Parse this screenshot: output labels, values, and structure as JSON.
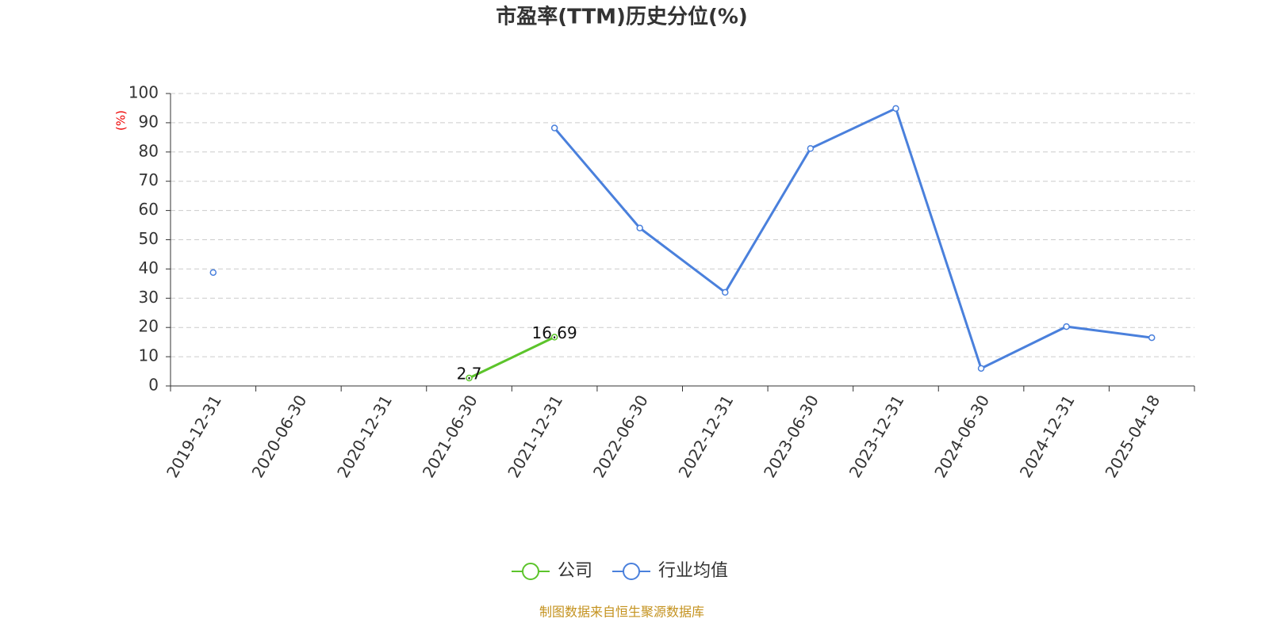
{
  "chart_data": {
    "type": "line",
    "title": "市盈率(TTM)历史分位(%)",
    "y_label": "(%)",
    "categories": [
      "2019-12-31",
      "2020-06-30",
      "2020-12-31",
      "2021-06-30",
      "2021-12-31",
      "2022-06-30",
      "2022-12-31",
      "2023-06-30",
      "2023-12-31",
      "2024-06-30",
      "2024-12-31",
      "2025-04-18"
    ],
    "series": [
      {
        "name": "公司",
        "color": "#5cc42b",
        "values": [
          null,
          null,
          null,
          2.7,
          16.69,
          null,
          null,
          null,
          null,
          null,
          null,
          null
        ],
        "show_labels": true
      },
      {
        "name": "行业均值",
        "color": "#4a80dc",
        "values": [
          38.8,
          null,
          null,
          null,
          88.2,
          54.0,
          32.0,
          81.2,
          94.9,
          6.0,
          20.3,
          16.5
        ],
        "show_labels": false
      }
    ],
    "ylim": [
      0,
      100
    ],
    "yticks": [
      0,
      10,
      20,
      30,
      40,
      50,
      60,
      70,
      80,
      90,
      100
    ],
    "grid": true,
    "legend": "bottom",
    "source": "制图数据来自恒生聚源数据库"
  }
}
